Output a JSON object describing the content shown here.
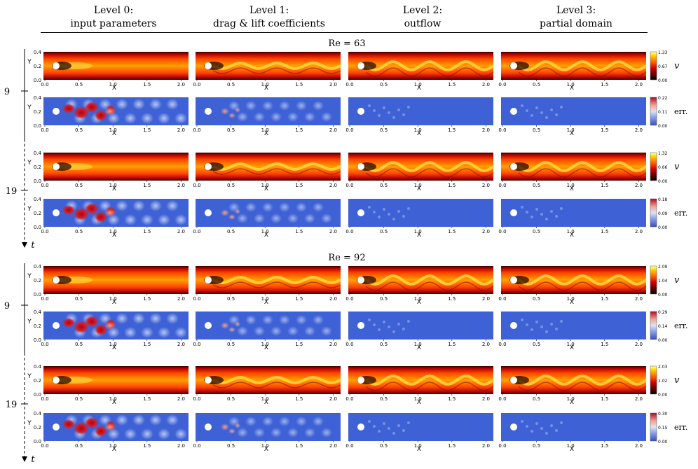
{
  "columns": [
    {
      "title": "Level 0:",
      "subtitle": "input parameters"
    },
    {
      "title": "Level 1:",
      "subtitle": "drag & lift coefficients"
    },
    {
      "title": "Level 2:",
      "subtitle": "outflow"
    },
    {
      "title": "Level 3:",
      "subtitle": "partial domain"
    }
  ],
  "axis": {
    "x_label": "X",
    "y_label": "Y",
    "x_ticks": [
      "0.0",
      "0.5",
      "1.0",
      "1.5",
      "2.0"
    ],
    "y_ticks": [
      "0.0",
      "0.2",
      "0.4"
    ]
  },
  "time_axis_label": "t",
  "timesteps": [
    "9",
    "19"
  ],
  "blocks": [
    {
      "title": "Re = 63",
      "rows": [
        {
          "kind": "v",
          "time": "9",
          "cb_label": "v",
          "cb_ticks": [
            "1.33",
            "0.67",
            "0.00"
          ]
        },
        {
          "kind": "err",
          "time": "9",
          "cb_label": "err.",
          "cb_ticks": [
            "0.22",
            "0.11",
            "0.00"
          ]
        },
        {
          "kind": "v",
          "time": "19",
          "cb_label": "v",
          "cb_ticks": [
            "1.32",
            "0.66",
            "0.00"
          ]
        },
        {
          "kind": "err",
          "time": "19",
          "cb_label": "err.",
          "cb_ticks": [
            "0.18",
            "0.09",
            "0.00"
          ]
        }
      ]
    },
    {
      "title": "Re = 92",
      "rows": [
        {
          "kind": "v",
          "time": "9",
          "cb_label": "v",
          "cb_ticks": [
            "2.09",
            "1.04",
            "0.00"
          ]
        },
        {
          "kind": "err",
          "time": "9",
          "cb_label": "err.",
          "cb_ticks": [
            "0.29",
            "0.14",
            "0.00"
          ]
        },
        {
          "kind": "v",
          "time": "19",
          "cb_label": "v",
          "cb_ticks": [
            "2.03",
            "1.02",
            "0.00"
          ]
        },
        {
          "kind": "err",
          "time": "19",
          "cb_label": "err.",
          "cb_ticks": [
            "0.30",
            "0.15",
            "0.00"
          ]
        }
      ]
    }
  ],
  "colors": {
    "velocity_colormap": [
      "#000000",
      "#5a0000",
      "#c80000",
      "#ff3c00",
      "#ff8c00",
      "#ffd200",
      "#ffffc8"
    ],
    "error_colormap": [
      "#3c5fdc",
      "#8fa6ec",
      "#dbe2f5",
      "#ef9a8c",
      "#c8141e"
    ],
    "field_background": "#c80f00",
    "error_background": "#3e62d6",
    "cylinder": "#ffffff"
  }
}
